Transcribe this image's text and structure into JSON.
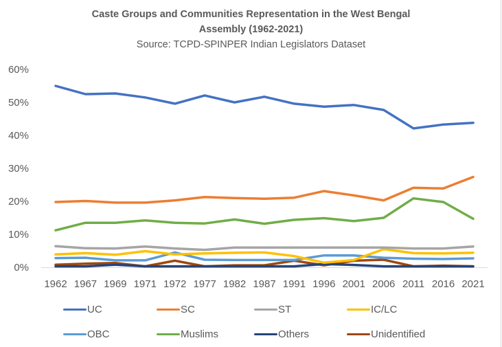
{
  "chart_data": {
    "type": "line",
    "title": "Caste Groups and Communities Representation in the West Bengal Assembly (1962-2021)",
    "title_line1": "Caste Groups and Communities Representation in the West Bengal",
    "title_line2": "Assembly (1962-2021)",
    "subtitle": "Source: TCPD-SPINPER Indian Legislators Dataset",
    "xlabel": "",
    "ylabel": "",
    "ylim": [
      0,
      60
    ],
    "yticks": [
      0,
      10,
      20,
      30,
      40,
      50,
      60
    ],
    "ytick_labels": [
      "0%",
      "10%",
      "20%",
      "30%",
      "40%",
      "50%",
      "60%"
    ],
    "grid": false,
    "legend_position": "bottom",
    "categories": [
      "1962",
      "1967",
      "1969",
      "1971",
      "1972",
      "1977",
      "1982",
      "1987",
      "1991",
      "1996",
      "2001",
      "2006",
      "2011",
      "2016",
      "2021"
    ],
    "series": [
      {
        "name": "UC",
        "color": "#4472c4",
        "values": [
          55.0,
          52.5,
          52.7,
          51.5,
          49.6,
          52.1,
          50.0,
          51.7,
          49.6,
          48.7,
          49.2,
          47.7,
          42.1,
          43.3,
          43.8
        ]
      },
      {
        "name": "SC",
        "color": "#ed7d31",
        "values": [
          19.8,
          20.1,
          19.6,
          19.6,
          20.3,
          21.3,
          21.0,
          20.8,
          21.1,
          23.1,
          21.8,
          20.3,
          24.1,
          23.9,
          27.4
        ]
      },
      {
        "name": "ST",
        "color": "#a5a5a5",
        "values": [
          6.4,
          5.8,
          5.7,
          6.3,
          5.7,
          5.3,
          6.0,
          6.0,
          6.0,
          6.0,
          6.0,
          6.0,
          5.7,
          5.7,
          6.3
        ]
      },
      {
        "name": "IC/LC",
        "color": "#ffc000",
        "values": [
          3.9,
          4.3,
          3.8,
          4.9,
          3.9,
          4.2,
          4.4,
          4.5,
          3.4,
          1.4,
          2.2,
          5.5,
          4.3,
          4.2,
          4.4
        ]
      },
      {
        "name": "OBC",
        "color": "#5b9bd5",
        "values": [
          2.8,
          2.9,
          2.1,
          2.1,
          4.5,
          2.3,
          2.2,
          2.2,
          2.2,
          3.6,
          3.6,
          2.9,
          2.6,
          2.5,
          2.7
        ]
      },
      {
        "name": "Muslims",
        "color": "#70ad47",
        "values": [
          11.2,
          13.5,
          13.5,
          14.2,
          13.5,
          13.3,
          14.5,
          13.2,
          14.4,
          14.9,
          14.0,
          15.0,
          20.9,
          19.8,
          14.7
        ]
      },
      {
        "name": "Others",
        "color": "#264478",
        "values": [
          0.3,
          0.3,
          0.8,
          0.3,
          0.3,
          0.3,
          0.3,
          0.3,
          0.3,
          1.0,
          0.7,
          0.3,
          0.3,
          0.3,
          0.3
        ]
      },
      {
        "name": "Unidentified",
        "color": "#9e480e",
        "values": [
          0.8,
          1.1,
          1.3,
          0.3,
          2.0,
          0.3,
          0.6,
          0.6,
          2.0,
          0.6,
          2.0,
          2.3,
          0.3,
          0.5,
          0.3
        ]
      }
    ]
  }
}
